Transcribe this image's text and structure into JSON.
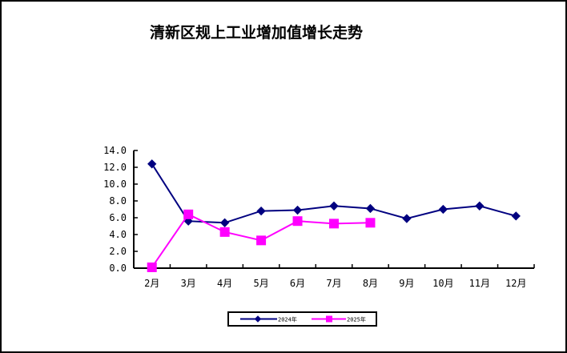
{
  "chart_data": {
    "type": "line",
    "title": "清新区规上工业增加值增长走势",
    "xlabel": "",
    "ylabel": "",
    "categories": [
      "2月",
      "3月",
      "4月",
      "5月",
      "6月",
      "7月",
      "8月",
      "9月",
      "10月",
      "11月",
      "12月"
    ],
    "series": [
      {
        "name": "2024年",
        "color": "#000080",
        "marker": "diamond",
        "values": [
          12.4,
          5.6,
          5.4,
          6.8,
          6.9,
          7.4,
          7.1,
          5.9,
          7.0,
          7.4,
          6.2
        ]
      },
      {
        "name": "2025年",
        "color": "#FF00FF",
        "marker": "square",
        "values": [
          0.1,
          6.4,
          4.3,
          3.3,
          5.6,
          5.3,
          5.4,
          null,
          null,
          null,
          null
        ]
      }
    ],
    "ylim": [
      0,
      14
    ],
    "yticks": [
      "0.0",
      "2.0",
      "4.0",
      "6.0",
      "8.0",
      "10.0",
      "12.0",
      "14.0"
    ],
    "grid": false,
    "legend_position": "bottom"
  },
  "legend": {
    "items": [
      {
        "label": "2024年"
      },
      {
        "label": "2025年"
      }
    ]
  }
}
